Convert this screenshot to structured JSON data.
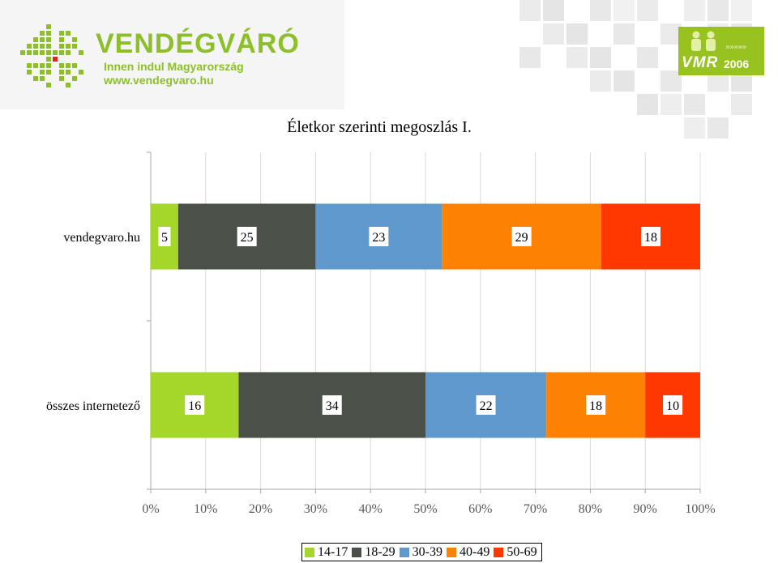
{
  "logo": {
    "title": "VENDÉGVÁRÓ",
    "tagline": "Innen indul Magyarország",
    "url": "www.vendegvaro.hu"
  },
  "badge": {
    "text": "VMR",
    "year": "2006",
    "arrows": "»»»»»"
  },
  "chart_data": {
    "type": "bar",
    "orientation": "horizontal",
    "stacked": "percent",
    "title": "Életkor szerinti megoszlás I.",
    "categories": [
      "vendegvaro.hu",
      "összes internetező"
    ],
    "series": [
      {
        "name": "14-17",
        "values": [
          5,
          16
        ],
        "color": "#a5d62a"
      },
      {
        "name": "18-29",
        "values": [
          25,
          34
        ],
        "color": "#4b5148"
      },
      {
        "name": "30-39",
        "values": [
          23,
          22
        ],
        "color": "#5f98cc"
      },
      {
        "name": "40-49",
        "values": [
          29,
          18
        ],
        "color": "#fd8103"
      },
      {
        "name": "50-69",
        "values": [
          18,
          10
        ],
        "color": "#ff3700"
      }
    ],
    "xaxis": {
      "min": 0,
      "max": 100,
      "ticks": [
        "0%",
        "10%",
        "20%",
        "30%",
        "40%",
        "50%",
        "60%",
        "70%",
        "80%",
        "90%",
        "100%"
      ]
    },
    "grid": true,
    "legend": "bottom"
  }
}
